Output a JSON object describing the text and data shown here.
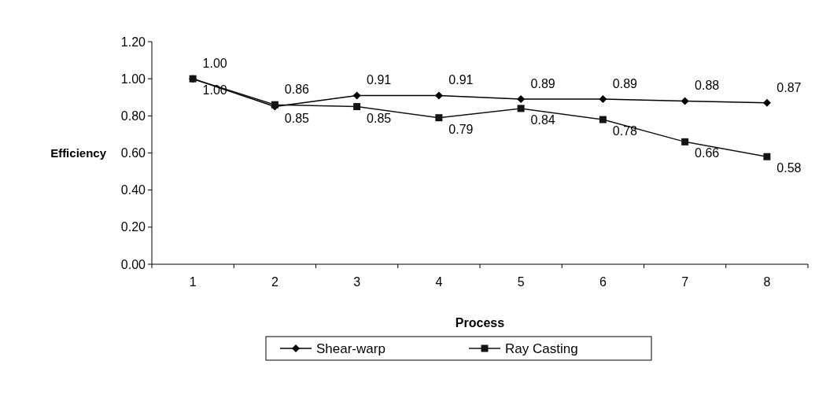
{
  "chart_data": {
    "type": "line",
    "xlabel": "Process",
    "ylabel": "Efficiency",
    "categories": [
      "1",
      "2",
      "3",
      "4",
      "5",
      "6",
      "7",
      "8"
    ],
    "series": [
      {
        "name": "Shear-warp",
        "color": "#000000",
        "marker": "diamond",
        "values": [
          1.0,
          0.85,
          0.91,
          0.91,
          0.89,
          0.89,
          0.88,
          0.87
        ],
        "value_labels": [
          "1.00",
          "0.85",
          "0.91",
          "0.91",
          "0.89",
          "0.89",
          "0.88",
          "0.87"
        ]
      },
      {
        "name": "Ray Casting",
        "color": "#141414",
        "marker": "square",
        "values": [
          1.0,
          0.86,
          0.85,
          0.79,
          0.84,
          0.78,
          0.66,
          0.58
        ],
        "value_labels": [
          "1.00",
          "0.86",
          "0.85",
          "0.79",
          "0.84",
          "0.78",
          "0.66",
          "0.58"
        ]
      }
    ],
    "ylim": [
      0,
      1.2
    ],
    "yticks": [
      {
        "value": 0,
        "label": "0.00"
      },
      {
        "value": 0.2,
        "label": "0.20"
      },
      {
        "value": 0.4,
        "label": "0.40"
      },
      {
        "value": 0.6,
        "label": "0.60"
      },
      {
        "value": 0.8,
        "label": "0.80"
      },
      {
        "value": 1.0,
        "label": "1.00"
      },
      {
        "value": 1.2,
        "label": "1.20"
      }
    ],
    "legend": "bottom",
    "grid": false,
    "line_style": "solid"
  }
}
